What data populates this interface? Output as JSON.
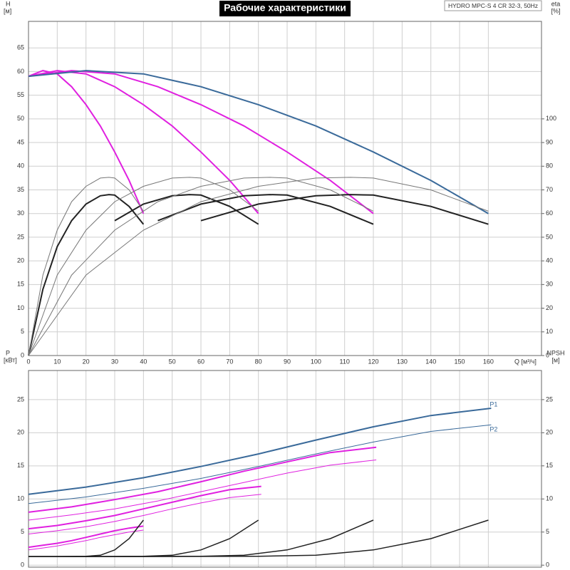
{
  "chart_data": [
    {
      "type": "line",
      "title": "Рабочие характеристики",
      "subtitle": "HYDRO MPC-S 4 CR 32-3, 50Hz",
      "xlabel": "Q [м³/ч]",
      "ylabel": "H",
      "yunit": "[м]",
      "y2label": "eta",
      "y2unit": "[%]",
      "xlim": [
        0,
        178.5
      ],
      "xticks": [
        0,
        10,
        20,
        30,
        40,
        50,
        60,
        70,
        80,
        90,
        100,
        110,
        120,
        130,
        140,
        150,
        160
      ],
      "ylim": [
        0,
        70.6
      ],
      "yticks": [
        0,
        5,
        10,
        15,
        20,
        25,
        30,
        35,
        40,
        45,
        50,
        55,
        60,
        65
      ],
      "y2lim": [
        0,
        141.2
      ],
      "y2ticks": [
        0,
        10,
        20,
        30,
        40,
        50,
        60,
        70,
        80,
        90,
        100
      ],
      "grid": true,
      "series": [
        {
          "color": "#e020e0",
          "width": 2,
          "x": [
            0,
            5,
            10,
            15,
            20,
            25,
            30,
            35,
            40
          ],
          "values": [
            59,
            60.2,
            59.5,
            56.8,
            53,
            48.5,
            43,
            37,
            30
          ]
        },
        {
          "color": "#e020e0",
          "width": 2,
          "x": [
            0,
            10,
            20,
            30,
            40,
            50,
            60,
            70,
            80
          ],
          "values": [
            59,
            60.2,
            59.5,
            56.8,
            53,
            48.5,
            43,
            37,
            30
          ]
        },
        {
          "color": "#e020e0",
          "width": 2,
          "x": [
            0,
            15,
            30,
            45,
            60,
            75,
            90,
            105,
            120
          ],
          "values": [
            59,
            60.2,
            59.5,
            56.8,
            53,
            48.5,
            43,
            37,
            30
          ]
        },
        {
          "color": "#3a6a9a",
          "width": 2,
          "x": [
            0,
            20,
            40,
            60,
            80,
            100,
            120,
            140,
            160
          ],
          "values": [
            59,
            60.2,
            59.5,
            56.8,
            53,
            48.5,
            43,
            37,
            30
          ]
        },
        {
          "color": "#222222",
          "width": 2,
          "axis": "y2",
          "x": [
            0,
            5,
            10,
            15,
            20,
            25,
            28,
            30,
            35,
            40
          ],
          "values": [
            0,
            28,
            46,
            57,
            64,
            67.5,
            68,
            67.8,
            63,
            55.5
          ]
        },
        {
          "color": "#222222",
          "width": 2,
          "axis": "y2",
          "x": [
            30,
            40,
            50,
            56,
            60,
            70,
            80
          ],
          "values": [
            57,
            64,
            67.5,
            68,
            67.8,
            63,
            55.5
          ]
        },
        {
          "color": "#222222",
          "width": 2,
          "axis": "y2",
          "x": [
            45,
            60,
            75,
            84,
            90,
            105,
            120
          ],
          "values": [
            57,
            64,
            67.5,
            68,
            67.8,
            63,
            55.5
          ]
        },
        {
          "color": "#222222",
          "width": 2,
          "axis": "y2",
          "x": [
            60,
            80,
            100,
            112,
            120,
            140,
            160
          ],
          "values": [
            57,
            64,
            67.5,
            68,
            67.8,
            63,
            55.5
          ]
        },
        {
          "color": "#777777",
          "width": 1,
          "axis": "y2",
          "x": [
            0,
            5,
            10,
            15,
            20,
            25,
            28,
            30,
            35,
            40
          ],
          "values": [
            0,
            34,
            53,
            65,
            71.5,
            75,
            75.3,
            75,
            70,
            61
          ]
        },
        {
          "color": "#777777",
          "width": 1,
          "axis": "y2",
          "x": [
            0,
            10,
            20,
            30,
            40,
            50,
            56,
            60,
            70,
            80
          ],
          "values": [
            0,
            34,
            53,
            65,
            71.5,
            75,
            75.3,
            75,
            70,
            61
          ]
        },
        {
          "color": "#777777",
          "width": 1,
          "axis": "y2",
          "x": [
            0,
            15,
            30,
            45,
            60,
            75,
            84,
            90,
            105,
            120
          ],
          "values": [
            0,
            34,
            53,
            65,
            71.5,
            75,
            75.3,
            75,
            70,
            61
          ]
        },
        {
          "color": "#777777",
          "width": 1,
          "axis": "y2",
          "x": [
            0,
            20,
            40,
            60,
            80,
            100,
            112,
            120,
            140,
            160
          ],
          "values": [
            0,
            34,
            53,
            65,
            71.5,
            75,
            75.3,
            75,
            70,
            61
          ]
        }
      ]
    },
    {
      "type": "line",
      "ylabel": "P",
      "yunit": "[кВт]",
      "y2label": "NPSH",
      "y2unit": "[м]",
      "xlim": [
        0,
        178.5
      ],
      "ylim": [
        -0.3,
        29.4
      ],
      "yticks": [
        0,
        5,
        10,
        15,
        20,
        25
      ],
      "y2lim": [
        -0.3,
        29.4
      ],
      "y2ticks": [
        0,
        5,
        10,
        15,
        20,
        25
      ],
      "grid": true,
      "series": [
        {
          "name": "P1",
          "color": "#3a6a9a",
          "width": 2,
          "x": [
            0,
            20,
            40,
            60,
            80,
            100,
            120,
            140,
            161
          ],
          "values": [
            10.7,
            11.8,
            13.2,
            14.9,
            16.8,
            18.9,
            20.9,
            22.6,
            23.7
          ]
        },
        {
          "name": "P2",
          "color": "#3a6a9a",
          "width": 1,
          "x": [
            0,
            20,
            40,
            60,
            80,
            100,
            120,
            140,
            161
          ],
          "values": [
            9.3,
            10.3,
            11.6,
            13.1,
            14.9,
            16.8,
            18.6,
            20.2,
            21.2
          ]
        },
        {
          "color": "#e020e0",
          "width": 2,
          "x": [
            0,
            15,
            30,
            45,
            60,
            75,
            90,
            105,
            121
          ],
          "values": [
            8,
            8.8,
            9.9,
            11.1,
            12.6,
            14.2,
            15.6,
            17,
            17.8
          ]
        },
        {
          "color": "#e020e0",
          "width": 1,
          "x": [
            0,
            15,
            30,
            45,
            60,
            75,
            90,
            105,
            121
          ],
          "values": [
            6.8,
            7.6,
            8.5,
            9.7,
            11.1,
            12.5,
            13.9,
            15.1,
            15.9
          ]
        },
        {
          "color": "#e020e0",
          "width": 2,
          "x": [
            0,
            10,
            20,
            30,
            40,
            50,
            60,
            70,
            81
          ],
          "values": [
            5.5,
            6,
            6.7,
            7.5,
            8.5,
            9.5,
            10.5,
            11.4,
            11.9
          ]
        },
        {
          "color": "#e020e0",
          "width": 1,
          "x": [
            0,
            10,
            20,
            30,
            40,
            50,
            60,
            70,
            81
          ],
          "values": [
            4.7,
            5.2,
            5.8,
            6.6,
            7.5,
            8.5,
            9.4,
            10.2,
            10.7
          ]
        },
        {
          "color": "#e020e0",
          "width": 2,
          "x": [
            0,
            5,
            10,
            15,
            20,
            25,
            30,
            35,
            40
          ],
          "values": [
            2.7,
            3,
            3.3,
            3.7,
            4.2,
            4.7,
            5.2,
            5.6,
            5.9
          ]
        },
        {
          "color": "#e020e0",
          "width": 1,
          "x": [
            0,
            5,
            10,
            15,
            20,
            25,
            30,
            35,
            40
          ],
          "values": [
            2.3,
            2.6,
            2.9,
            3.3,
            3.7,
            4.2,
            4.6,
            5,
            5.3
          ]
        },
        {
          "color": "#222222",
          "width": 1.5,
          "axis": "y2",
          "x": [
            0,
            10,
            20,
            25,
            30,
            35,
            40
          ],
          "values": [
            1.3,
            1.3,
            1.35,
            1.5,
            2.3,
            4,
            6.8
          ]
        },
        {
          "color": "#222222",
          "width": 1.5,
          "axis": "y2",
          "x": [
            0,
            20,
            40,
            50,
            60,
            70,
            80
          ],
          "values": [
            1.3,
            1.3,
            1.35,
            1.5,
            2.3,
            4,
            6.8
          ]
        },
        {
          "color": "#222222",
          "width": 1.5,
          "axis": "y2",
          "x": [
            0,
            30,
            60,
            75,
            90,
            105,
            120
          ],
          "values": [
            1.3,
            1.3,
            1.35,
            1.5,
            2.3,
            4,
            6.8
          ]
        },
        {
          "color": "#222222",
          "width": 1.5,
          "axis": "y2",
          "x": [
            0,
            40,
            80,
            100,
            120,
            140,
            160
          ],
          "values": [
            1.3,
            1.3,
            1.35,
            1.5,
            2.3,
            4,
            6.8
          ]
        }
      ]
    }
  ]
}
